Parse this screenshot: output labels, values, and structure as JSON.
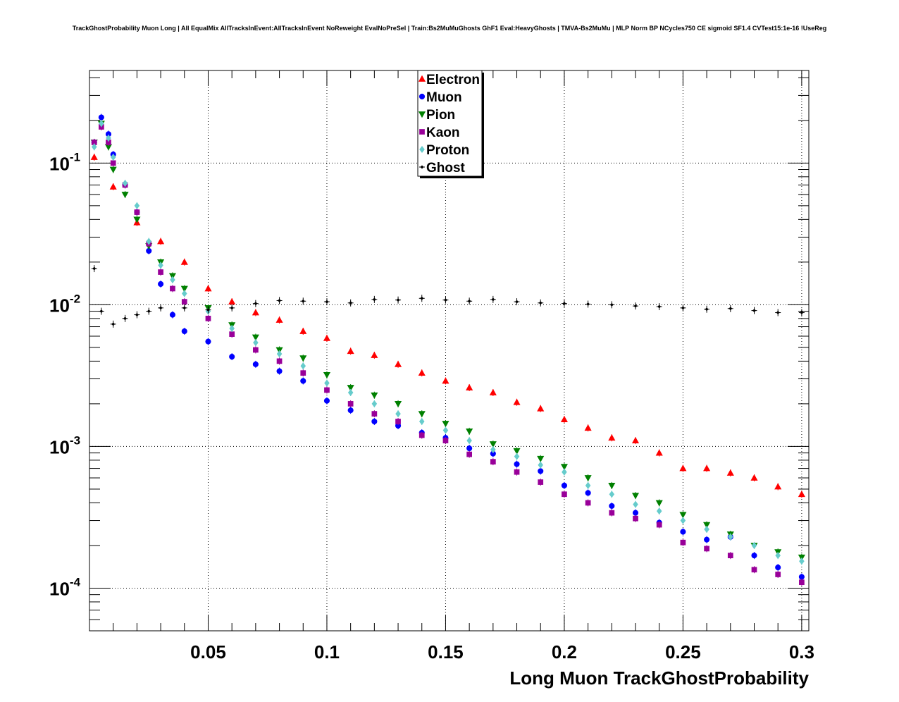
{
  "chart_data": {
    "type": "scatter",
    "title": "TrackGhostProbability Muon Long | All EqualMix AllTracksInEvent:AllTracksInEvent NoReweight EvalNoPreSel | Train:Bs2MuMuGhosts GhF1 Eval:HeavyGhosts | TMVA-Bs2MuMu | MLP Norm BP NCycles750 CE sigmoid SF1.4 CVTest15:1e-16 !UseReg",
    "xlabel": "Long Muon TrackGhostProbability",
    "ylabel": "",
    "xlim": [
      0.0,
      0.303
    ],
    "ylim": [
      5e-05,
      0.45
    ],
    "yscale": "log",
    "grid": true,
    "legend_position": "top-center",
    "x_ticks": [
      "0.05",
      "0.1",
      "0.15",
      "0.2",
      "0.25",
      "0.3"
    ],
    "y_ticks": [
      {
        "base": "10",
        "exp": "-1"
      },
      {
        "base": "10",
        "exp": "-2"
      },
      {
        "base": "10",
        "exp": "-3"
      },
      {
        "base": "10",
        "exp": "-4"
      }
    ],
    "series": [
      {
        "name": "Electron",
        "color": "#ff0000",
        "marker": "triangle-up",
        "x": [
          0.002,
          0.01,
          0.02,
          0.03,
          0.04,
          0.05,
          0.06,
          0.07,
          0.08,
          0.09,
          0.1,
          0.11,
          0.12,
          0.13,
          0.14,
          0.15,
          0.16,
          0.17,
          0.18,
          0.19,
          0.2,
          0.21,
          0.22,
          0.23,
          0.24,
          0.25,
          0.26,
          0.27,
          0.28,
          0.29,
          0.3
        ],
        "y": [
          0.11,
          0.068,
          0.038,
          0.028,
          0.02,
          0.013,
          0.0105,
          0.0088,
          0.0078,
          0.0065,
          0.0058,
          0.0047,
          0.0044,
          0.0038,
          0.0033,
          0.0029,
          0.0026,
          0.0024,
          0.00205,
          0.00185,
          0.00155,
          0.00135,
          0.00115,
          0.0011,
          0.0009,
          0.0007,
          0.0007,
          0.00065,
          0.0006,
          0.00052,
          0.00046
        ]
      },
      {
        "name": "Muon",
        "color": "#0000ff",
        "marker": "circle",
        "x": [
          0.002,
          0.005,
          0.008,
          0.01,
          0.015,
          0.02,
          0.025,
          0.03,
          0.035,
          0.04,
          0.05,
          0.06,
          0.07,
          0.08,
          0.09,
          0.1,
          0.11,
          0.12,
          0.13,
          0.14,
          0.15,
          0.16,
          0.17,
          0.18,
          0.19,
          0.2,
          0.21,
          0.22,
          0.23,
          0.24,
          0.25,
          0.26,
          0.27,
          0.28,
          0.29,
          0.3
        ],
        "y": [
          0.14,
          0.21,
          0.16,
          0.115,
          0.07,
          0.045,
          0.024,
          0.014,
          0.0085,
          0.0065,
          0.0055,
          0.0043,
          0.0038,
          0.0034,
          0.0029,
          0.0021,
          0.0018,
          0.0015,
          0.0014,
          0.00125,
          0.00115,
          0.00097,
          0.00089,
          0.00075,
          0.00067,
          0.00053,
          0.00047,
          0.00038,
          0.00034,
          0.00029,
          0.00025,
          0.00022,
          0.00023,
          0.00017,
          0.00014,
          0.00012
        ]
      },
      {
        "name": "Pion",
        "color": "#008000",
        "marker": "triangle-down",
        "x": [
          0.002,
          0.005,
          0.008,
          0.01,
          0.015,
          0.02,
          0.025,
          0.03,
          0.035,
          0.04,
          0.05,
          0.06,
          0.07,
          0.08,
          0.09,
          0.1,
          0.11,
          0.12,
          0.13,
          0.14,
          0.15,
          0.16,
          0.17,
          0.18,
          0.19,
          0.2,
          0.21,
          0.22,
          0.23,
          0.24,
          0.25,
          0.26,
          0.27,
          0.28,
          0.29,
          0.3
        ],
        "y": [
          0.14,
          0.19,
          0.13,
          0.09,
          0.06,
          0.04,
          0.026,
          0.02,
          0.016,
          0.013,
          0.0095,
          0.0072,
          0.0059,
          0.0048,
          0.0042,
          0.0032,
          0.0026,
          0.0023,
          0.002,
          0.0017,
          0.00145,
          0.00128,
          0.00104,
          0.00093,
          0.00082,
          0.00072,
          0.0006,
          0.00053,
          0.00045,
          0.0004,
          0.00033,
          0.00028,
          0.00024,
          0.0002,
          0.00018,
          0.000165
        ]
      },
      {
        "name": "Kaon",
        "color": "#990099",
        "marker": "square",
        "x": [
          0.002,
          0.005,
          0.008,
          0.01,
          0.015,
          0.02,
          0.025,
          0.03,
          0.035,
          0.04,
          0.05,
          0.06,
          0.07,
          0.08,
          0.09,
          0.1,
          0.11,
          0.12,
          0.13,
          0.14,
          0.15,
          0.16,
          0.17,
          0.18,
          0.19,
          0.2,
          0.21,
          0.22,
          0.23,
          0.24,
          0.25,
          0.26,
          0.27,
          0.28,
          0.29,
          0.3
        ],
        "y": [
          0.14,
          0.18,
          0.14,
          0.1,
          0.07,
          0.045,
          0.027,
          0.017,
          0.013,
          0.0105,
          0.008,
          0.0062,
          0.0048,
          0.004,
          0.0033,
          0.0025,
          0.002,
          0.0017,
          0.0015,
          0.0012,
          0.0011,
          0.00088,
          0.00078,
          0.00066,
          0.00056,
          0.00046,
          0.0004,
          0.00034,
          0.00031,
          0.00028,
          0.00021,
          0.00019,
          0.00017,
          0.000135,
          0.000125,
          0.00011
        ]
      },
      {
        "name": "Proton",
        "color": "#66cccc",
        "marker": "diamond",
        "x": [
          0.002,
          0.005,
          0.008,
          0.01,
          0.015,
          0.02,
          0.025,
          0.03,
          0.035,
          0.04,
          0.05,
          0.06,
          0.07,
          0.08,
          0.09,
          0.1,
          0.11,
          0.12,
          0.13,
          0.14,
          0.15,
          0.16,
          0.17,
          0.18,
          0.19,
          0.2,
          0.21,
          0.22,
          0.23,
          0.24,
          0.25,
          0.26,
          0.27,
          0.28,
          0.29,
          0.3
        ],
        "y": [
          0.13,
          0.19,
          0.15,
          0.11,
          0.072,
          0.05,
          0.028,
          0.019,
          0.015,
          0.012,
          0.009,
          0.0068,
          0.0054,
          0.0045,
          0.0037,
          0.0028,
          0.0024,
          0.002,
          0.0017,
          0.0015,
          0.0013,
          0.0011,
          0.00095,
          0.00085,
          0.00074,
          0.00066,
          0.00053,
          0.00046,
          0.00039,
          0.00035,
          0.0003,
          0.00026,
          0.00023,
          0.0002,
          0.00017,
          0.000155
        ]
      },
      {
        "name": "Ghost",
        "color": "#000000",
        "marker": "cross",
        "x": [
          0.002,
          0.005,
          0.01,
          0.015,
          0.02,
          0.025,
          0.03,
          0.04,
          0.05,
          0.06,
          0.07,
          0.08,
          0.09,
          0.1,
          0.11,
          0.12,
          0.13,
          0.14,
          0.15,
          0.16,
          0.17,
          0.18,
          0.19,
          0.2,
          0.21,
          0.22,
          0.23,
          0.24,
          0.25,
          0.26,
          0.27,
          0.28,
          0.29,
          0.3
        ],
        "y": [
          0.018,
          0.009,
          0.0073,
          0.008,
          0.0085,
          0.009,
          0.0095,
          0.0095,
          0.0092,
          0.0095,
          0.0102,
          0.0107,
          0.0106,
          0.0105,
          0.0103,
          0.0109,
          0.0108,
          0.0111,
          0.0108,
          0.0106,
          0.0109,
          0.0105,
          0.0103,
          0.0102,
          0.0101,
          0.01,
          0.0098,
          0.0097,
          0.0095,
          0.0093,
          0.0094,
          0.0091,
          0.0088,
          0.0088
        ]
      }
    ]
  }
}
